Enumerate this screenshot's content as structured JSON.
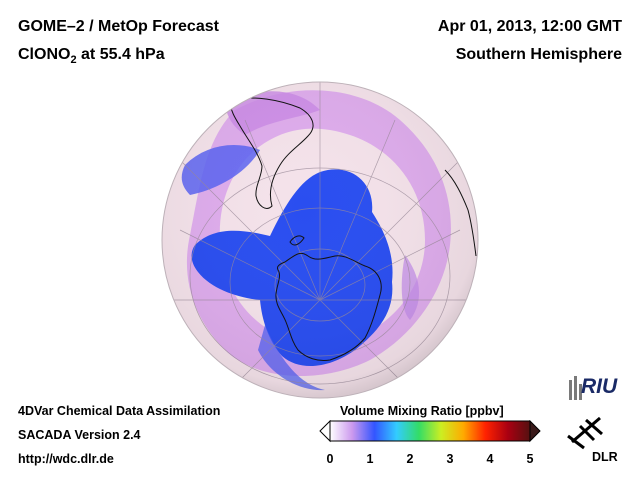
{
  "header": {
    "title": "GOME–2 / MetOp Forecast",
    "species_main": "ClONO",
    "species_sub": "2",
    "species_rest": " at 55.4 hPa",
    "datetime": "Apr 01, 2013, 12:00 GMT",
    "hemisphere": "Southern Hemisphere"
  },
  "footer": {
    "line1": "4DVar Chemical Data Assimilation",
    "line2": "SACADA Version 2.4",
    "line3": "http://wdc.dlr.de"
  },
  "colorbar": {
    "title": "Volume Mixing Ratio [ppbv]",
    "ticks": [
      "0",
      "1",
      "2",
      "3",
      "4",
      "5"
    ],
    "range": [
      0,
      5
    ],
    "colors": [
      "#ffffff",
      "#cc99ee",
      "#3355ff",
      "#33ccff",
      "#33dd66",
      "#ccee22",
      "#ffaa00",
      "#ff2200",
      "#aa0011",
      "#551111"
    ]
  },
  "logos": {
    "riu": "RIU",
    "dlr": "DLR"
  },
  "map": {
    "projection": "orthographic-south-polar",
    "colors": {
      "background": "#f4e2ea",
      "mid": "#d9a5ec",
      "low": "#2a4ef0",
      "coast": "#111111",
      "grid": "#9a8a99"
    }
  }
}
